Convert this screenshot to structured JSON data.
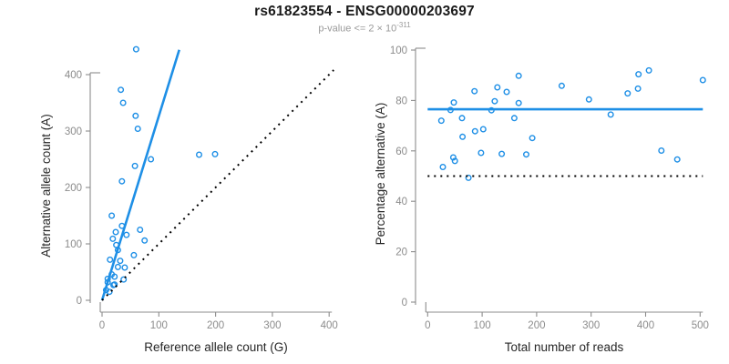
{
  "header": {
    "title": "rs61823554 - ENSG00000203697",
    "subtitle_base": "p-value <= 2 × 10",
    "subtitle_exponent": "-311"
  },
  "colors": {
    "accent_blue": "#1E8FE6",
    "dotted_black": "#000000",
    "axis_gray": "#8C8C8C",
    "axis_title_gray": "#262626",
    "subtitle_gray": "#9A9A9A"
  },
  "chart_data": [
    {
      "type": "scatter",
      "panel": "left",
      "xlabel": "Reference allele count (G)",
      "ylabel": "Alternative allele count (A)",
      "xticks": [
        0,
        100,
        200,
        300,
        400
      ],
      "yticks": [
        0,
        100,
        200,
        300,
        400
      ],
      "xlim": [
        0,
        410
      ],
      "ylim": [
        0,
        450
      ],
      "grid": false,
      "marker": "open-circle",
      "points": [
        [
          60,
          445
        ],
        [
          33,
          373
        ],
        [
          37,
          350
        ],
        [
          59,
          327
        ],
        [
          63,
          304
        ],
        [
          86,
          250
        ],
        [
          58,
          238
        ],
        [
          35,
          211
        ],
        [
          171,
          258
        ],
        [
          199,
          259
        ],
        [
          17,
          150
        ],
        [
          35,
          132
        ],
        [
          24,
          121
        ],
        [
          19,
          109
        ],
        [
          25,
          98
        ],
        [
          67,
          125
        ],
        [
          43,
          116
        ],
        [
          75,
          106
        ],
        [
          28,
          89
        ],
        [
          56,
          80
        ],
        [
          32,
          70
        ],
        [
          14,
          72
        ],
        [
          28,
          59
        ],
        [
          40,
          58
        ],
        [
          17,
          46
        ],
        [
          22,
          42
        ],
        [
          10,
          38
        ],
        [
          38,
          37
        ],
        [
          10,
          32
        ],
        [
          22,
          28
        ],
        [
          20,
          27
        ],
        [
          7,
          18
        ],
        [
          13,
          15
        ]
      ],
      "lines": [
        {
          "name": "fit-line",
          "style": "solid",
          "color": "#1E8FE6",
          "x1": 0,
          "y1": 0,
          "x2": 136,
          "y2": 444
        },
        {
          "name": "identity-line",
          "style": "dotted",
          "color": "#000000",
          "x1": 0,
          "y1": 0,
          "x2": 408,
          "y2": 408
        }
      ]
    },
    {
      "type": "scatter",
      "panel": "right",
      "xlabel": "Total number of reads",
      "ylabel": "Percentage alternative (A)",
      "xticks": [
        0,
        100,
        200,
        300,
        400,
        500
      ],
      "yticks": [
        0,
        20,
        40,
        60,
        80,
        100
      ],
      "xlim": [
        0,
        505
      ],
      "ylim": [
        0,
        100
      ],
      "grid": false,
      "marker": "open-circle",
      "points": [
        [
          505,
          88.1
        ],
        [
          406,
          91.9
        ],
        [
          387,
          90.4
        ],
        [
          386,
          84.7
        ],
        [
          367,
          82.8
        ],
        [
          336,
          74.4
        ],
        [
          296,
          80.4
        ],
        [
          246,
          85.8
        ],
        [
          429,
          60.1
        ],
        [
          458,
          56.6
        ],
        [
          167,
          89.8
        ],
        [
          167,
          79.0
        ],
        [
          145,
          83.4
        ],
        [
          128,
          85.2
        ],
        [
          123,
          79.7
        ],
        [
          192,
          65.1
        ],
        [
          159,
          73.0
        ],
        [
          181,
          58.6
        ],
        [
          117,
          76.1
        ],
        [
          136,
          58.8
        ],
        [
          102,
          68.6
        ],
        [
          86,
          83.7
        ],
        [
          87,
          67.8
        ],
        [
          98,
          59.2
        ],
        [
          63,
          73.0
        ],
        [
          64,
          65.6
        ],
        [
          48,
          79.2
        ],
        [
          75,
          49.3
        ],
        [
          42,
          76.2
        ],
        [
          50,
          56.0
        ],
        [
          47,
          57.4
        ],
        [
          25,
          72.0
        ],
        [
          28,
          53.6
        ]
      ],
      "lines": [
        {
          "name": "mean-line",
          "style": "solid",
          "color": "#1E8FE6",
          "x1": 0,
          "y1": 76.5,
          "x2": 505,
          "y2": 76.5
        },
        {
          "name": "null-line",
          "style": "dotted",
          "color": "#000000",
          "x1": 0,
          "y1": 50,
          "x2": 505,
          "y2": 50
        }
      ]
    }
  ]
}
